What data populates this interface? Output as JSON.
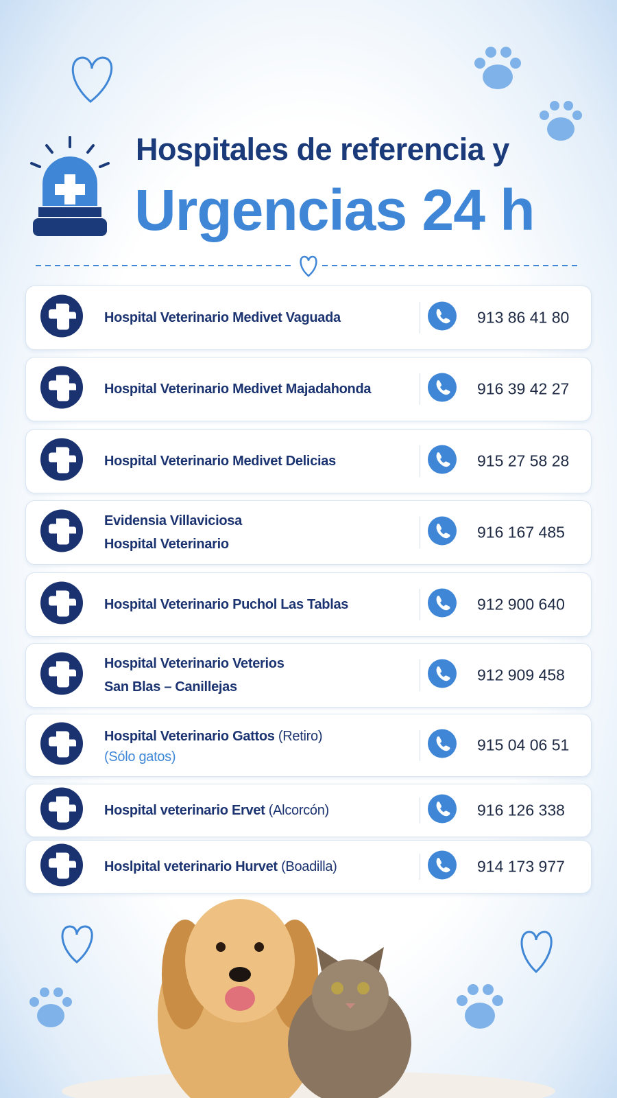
{
  "header": {
    "line1": "Hospitales de referencia y",
    "line2": "Urgencias 24 h"
  },
  "hospitals": [
    {
      "name": [
        "Hospital Veterinario Medivet Vaguada"
      ],
      "phone": "913 86 41 80"
    },
    {
      "name": [
        "Hospital Veterinario Medivet Majadahonda"
      ],
      "phone": "916 39 42 27"
    },
    {
      "name": [
        "Hospital Veterinario Medivet Delicias"
      ],
      "phone": "915 27 58 28"
    },
    {
      "name": [
        "Evidensia Villaviciosa",
        "Hospital Veterinario"
      ],
      "phone": "916 167 485"
    },
    {
      "name": [
        "Hospital Veterinario Puchol Las Tablas"
      ],
      "phone": "912 900 640"
    },
    {
      "name": [
        "Hospital Veterinario Veterios",
        "San Blas – Canillejas"
      ],
      "phone": "912 909 458"
    },
    {
      "name": [
        "Hospital Veterinario Gattos"
      ],
      "qualifier": "(Retiro)",
      "note": "(Sólo gatos)",
      "phone": "915 04 06 51"
    },
    {
      "name": [
        "Hospital veterinario Ervet"
      ],
      "qualifier": "(Alcorcón)",
      "phone": "916 126 338"
    },
    {
      "name": [
        "Hoslpital veterinario Hurvet"
      ],
      "qualifier": "(Boadilla)",
      "phone": "914 173 977"
    }
  ]
}
